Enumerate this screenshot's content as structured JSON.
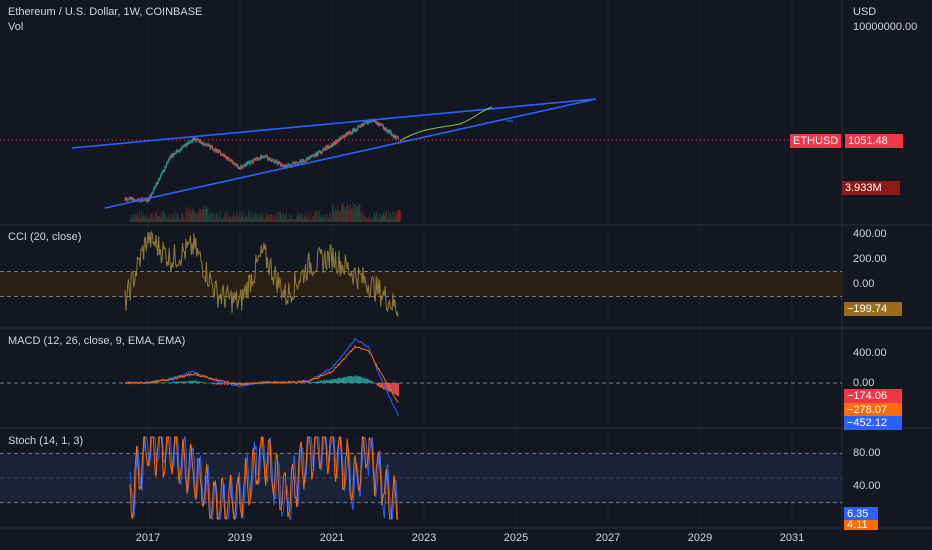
{
  "header": {
    "title": "Ethereum / U.S. Dollar, 1W, COINBASE",
    "vol_label": "Vol",
    "currency": "USD",
    "top_scale_value": "10000000.00"
  },
  "price_tags": {
    "symbol": "ETHUSD",
    "price": "1051.48",
    "volume": "3.933M"
  },
  "panes": {
    "cci": {
      "label": "CCI (20, close)",
      "value": "−199.74",
      "ticks": [
        "400.00",
        "200.00",
        "0.00"
      ]
    },
    "macd": {
      "label": "MACD (12, 26, close, 9, EMA, EMA)",
      "ticks": [
        "400.00",
        "0.00"
      ],
      "values": [
        "−174.06",
        "−278.07",
        "−452.12"
      ]
    },
    "stoch": {
      "label": "Stoch (14, 1, 3)",
      "ticks": [
        "80.00",
        "40.00"
      ],
      "values": [
        "6.35",
        "4.11"
      ]
    }
  },
  "x_axis": {
    "labels": [
      "2017",
      "2019",
      "2021",
      "2023",
      "2025",
      "2027",
      "2029",
      "2031"
    ]
  },
  "colors": {
    "background": "#131722",
    "trendline": "#2962ff",
    "candle_up": "#26a69a",
    "candle_down": "#ef5350",
    "projection": "#8bc34a",
    "cci_line": "#8d7a3a",
    "macd_line": "#2962ff",
    "signal_line": "#ff6d00",
    "stoch_k": "#2962ff",
    "stoch_d": "#ff6d00",
    "symbol_tag": "#f23645",
    "volume_tag": "#8b1a1a",
    "cci_tag": "#9c6b18",
    "macd_hist_tag": "#f23645",
    "signal_tag": "#ff6d00",
    "macd_tag": "#2962ff"
  },
  "chart_data": [
    {
      "type": "line",
      "title": "Ethereum / U.S. Dollar, 1W, COINBASE",
      "x": [
        2016.5,
        2017.0,
        2017.5,
        2018.0,
        2018.5,
        2019.0,
        2019.5,
        2020.0,
        2020.5,
        2021.0,
        2021.5,
        2021.85,
        2022.0,
        2022.45
      ],
      "values": [
        11,
        10,
        300,
        1100,
        450,
        120,
        300,
        130,
        240,
        730,
        2300,
        4700,
        3700,
        1051.48
      ],
      "log_scale": true,
      "annotations": "rising wedge trendlines with projection toward 2027"
    },
    {
      "type": "line",
      "title": "CCI (20, close)",
      "x": [
        2016.5,
        2017.0,
        2017.5,
        2018.0,
        2018.5,
        2019.0,
        2019.5,
        2020.0,
        2020.5,
        2021.0,
        2021.5,
        2022.0,
        2022.45
      ],
      "values": [
        -150,
        380,
        200,
        300,
        -80,
        -150,
        250,
        -100,
        150,
        220,
        80,
        -50,
        -199.74
      ],
      "ylim": [
        -300,
        400
      ]
    },
    {
      "type": "line",
      "title": "MACD (12, 26, close, 9, EMA, EMA)",
      "x": [
        2016.5,
        2017.0,
        2017.5,
        2018.0,
        2018.5,
        2019.0,
        2019.5,
        2020.0,
        2020.5,
        2021.0,
        2021.5,
        2021.8,
        2022.0,
        2022.45
      ],
      "series": [
        {
          "name": "MACD",
          "values": [
            0,
            5,
            60,
            150,
            20,
            -40,
            10,
            5,
            30,
            200,
            580,
            480,
            150,
            -452.12
          ]
        },
        {
          "name": "Signal",
          "values": [
            0,
            2,
            50,
            120,
            40,
            -20,
            5,
            8,
            25,
            150,
            480,
            430,
            200,
            -278.07
          ]
        },
        {
          "name": "Histogram",
          "values": [
            0,
            3,
            10,
            30,
            -20,
            -20,
            5,
            -3,
            5,
            50,
            100,
            50,
            -50,
            -174.06
          ]
        }
      ],
      "ylim": [
        -500,
        700
      ]
    },
    {
      "type": "line",
      "title": "Stoch (14, 1, 3)",
      "x": [
        2016.6,
        2017.0,
        2017.5,
        2018.0,
        2018.5,
        2019.0,
        2019.5,
        2020.0,
        2020.5,
        2021.0,
        2021.5,
        2021.75,
        2022.0,
        2022.45
      ],
      "series": [
        {
          "name": "%K",
          "values": [
            20,
            95,
            90,
            60,
            10,
            20,
            85,
            15,
            90,
            95,
            40,
            95,
            50,
            6.35
          ]
        },
        {
          "name": "%D",
          "values": [
            25,
            90,
            85,
            55,
            15,
            25,
            80,
            20,
            85,
            90,
            45,
            90,
            55,
            4.11
          ]
        }
      ],
      "ylim": [
        0,
        100
      ]
    }
  ]
}
